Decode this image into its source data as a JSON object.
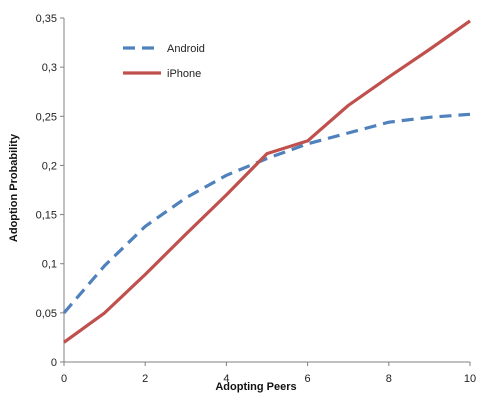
{
  "chart_data": {
    "type": "line",
    "title": "",
    "xlabel": "Adopting Peers",
    "ylabel": "Adoption Probability",
    "xlim": [
      0,
      10
    ],
    "ylim": [
      0,
      0.35
    ],
    "x_ticks": [
      "0",
      "2",
      "4",
      "6",
      "8",
      "10"
    ],
    "y_ticks": [
      "0",
      "0,05",
      "0,1",
      "0,15",
      "0,2",
      "0,25",
      "0,3",
      "0,35"
    ],
    "grid": false,
    "legend_position": "top-left",
    "x": [
      0,
      1,
      2,
      3,
      4,
      5,
      6,
      7,
      8,
      9,
      10
    ],
    "series": [
      {
        "name": "Android",
        "color": "#4f81bd",
        "style": "dashed",
        "values": [
          0.05,
          0.098,
          0.138,
          0.167,
          0.19,
          0.207,
          0.222,
          0.233,
          0.244,
          0.249,
          0.252
        ]
      },
      {
        "name": "iPhone",
        "color": "#c0504d",
        "style": "solid",
        "values": [
          0.02,
          0.05,
          0.089,
          0.13,
          0.17,
          0.212,
          0.225,
          0.261,
          0.29,
          0.318,
          0.347
        ]
      }
    ]
  }
}
